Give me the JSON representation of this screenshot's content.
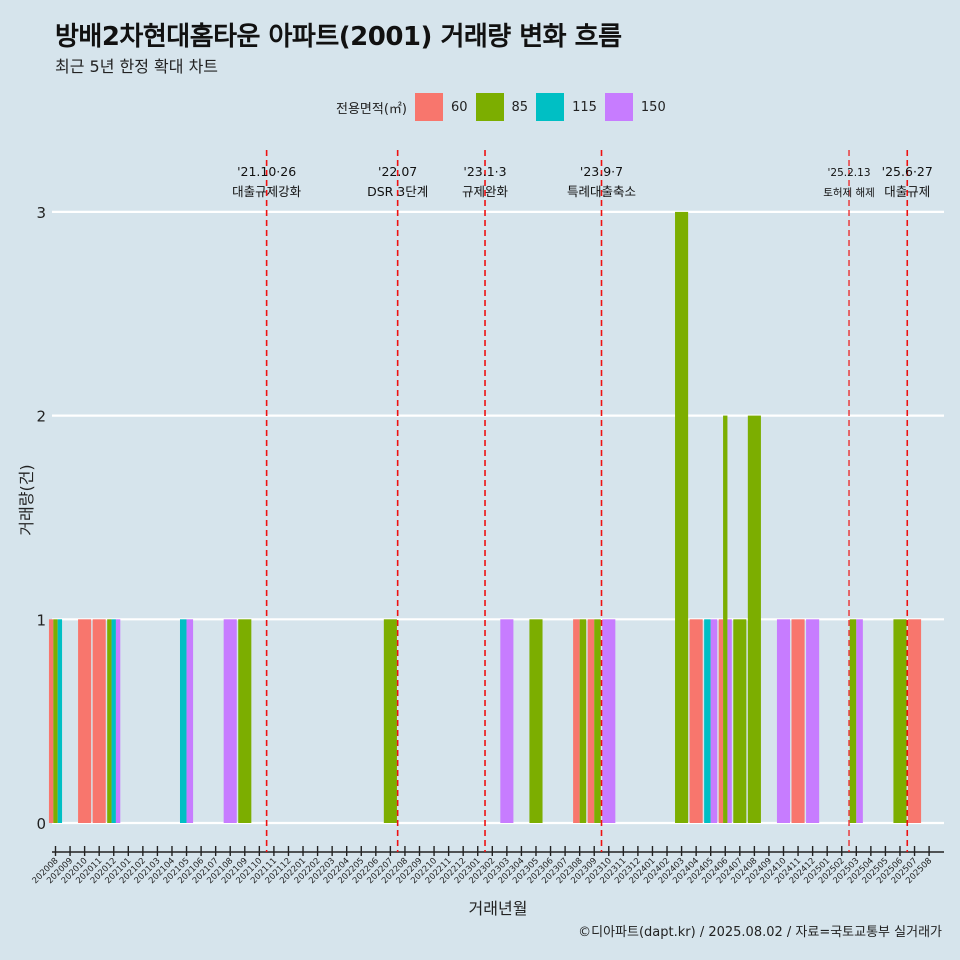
{
  "title": "방배2차현대홈타운 아파트(2001) 거래량 변화 흐름",
  "subtitle": "최근 5년 한정 확대 차트",
  "caption": "©디아파트(dapt.kr) / 2025.08.02 / 자료=국토교통부 실거래가",
  "legend": {
    "title": "전용면적(㎡)",
    "items": [
      {
        "label": "60",
        "color": "#f8766d"
      },
      {
        "label": "85",
        "color": "#7cae00"
      },
      {
        "label": "115",
        "color": "#00bfc4"
      },
      {
        "label": "150",
        "color": "#c77cff"
      }
    ]
  },
  "chart_data": {
    "type": "bar",
    "xlabel": "거래년월",
    "ylabel": "거래량(건)",
    "ylim": [
      0,
      3
    ],
    "yticks": [
      0,
      1,
      2,
      3
    ],
    "categories": [
      "202008",
      "202009",
      "202010",
      "202011",
      "202012",
      "202101",
      "202102",
      "202103",
      "202104",
      "202105",
      "202106",
      "202107",
      "202108",
      "202109",
      "202110",
      "202111",
      "202112",
      "202201",
      "202202",
      "202203",
      "202204",
      "202205",
      "202206",
      "202207",
      "202208",
      "202209",
      "202210",
      "202211",
      "202212",
      "202301",
      "202302",
      "202303",
      "202304",
      "202305",
      "202306",
      "202307",
      "202308",
      "202309",
      "202310",
      "202311",
      "202312",
      "202401",
      "202402",
      "202403",
      "202404",
      "202405",
      "202406",
      "202407",
      "202408",
      "202409",
      "202410",
      "202411",
      "202412",
      "202501",
      "202502",
      "202503",
      "202504",
      "202505",
      "202506",
      "202507",
      "202508"
    ],
    "bars": [
      {
        "month": "202008",
        "values": [
          {
            "area": "60",
            "count": 1
          },
          {
            "area": "85",
            "count": 1
          },
          {
            "area": "115",
            "count": 1
          }
        ]
      },
      {
        "month": "202010",
        "values": [
          {
            "area": "60",
            "count": 1
          }
        ]
      },
      {
        "month": "202011",
        "values": [
          {
            "area": "60",
            "count": 1
          }
        ]
      },
      {
        "month": "202012",
        "values": [
          {
            "area": "85",
            "count": 1
          },
          {
            "area": "115",
            "count": 1
          },
          {
            "area": "150",
            "count": 1
          }
        ]
      },
      {
        "month": "202105",
        "values": [
          {
            "area": "115",
            "count": 1
          },
          {
            "area": "150",
            "count": 1
          }
        ]
      },
      {
        "month": "202108",
        "values": [
          {
            "area": "150",
            "count": 1
          }
        ]
      },
      {
        "month": "202109",
        "values": [
          {
            "area": "85",
            "count": 1
          }
        ]
      },
      {
        "month": "202207",
        "values": [
          {
            "area": "85",
            "count": 1
          }
        ]
      },
      {
        "month": "202303",
        "values": [
          {
            "area": "150",
            "count": 1
          }
        ]
      },
      {
        "month": "202305",
        "values": [
          {
            "area": "85",
            "count": 1
          }
        ]
      },
      {
        "month": "202308",
        "values": [
          {
            "area": "60",
            "count": 1
          },
          {
            "area": "85",
            "count": 1
          }
        ]
      },
      {
        "month": "202309",
        "values": [
          {
            "area": "60",
            "count": 1
          },
          {
            "area": "85",
            "count": 1
          }
        ]
      },
      {
        "month": "202310",
        "values": [
          {
            "area": "150",
            "count": 1
          }
        ]
      },
      {
        "month": "202403",
        "values": [
          {
            "area": "85",
            "count": 3
          }
        ]
      },
      {
        "month": "202404",
        "values": [
          {
            "area": "60",
            "count": 1
          }
        ]
      },
      {
        "month": "202405",
        "values": [
          {
            "area": "115",
            "count": 1
          },
          {
            "area": "150",
            "count": 1
          }
        ]
      },
      {
        "month": "202406",
        "values": [
          {
            "area": "60",
            "count": 1
          },
          {
            "area": "85",
            "count": 2
          },
          {
            "area": "150",
            "count": 1
          }
        ]
      },
      {
        "month": "202407",
        "values": [
          {
            "area": "85",
            "count": 1
          }
        ]
      },
      {
        "month": "202408",
        "values": [
          {
            "area": "85",
            "count": 2
          }
        ]
      },
      {
        "month": "202410",
        "values": [
          {
            "area": "150",
            "count": 1
          }
        ]
      },
      {
        "month": "202411",
        "values": [
          {
            "area": "60",
            "count": 1
          }
        ]
      },
      {
        "month": "202412",
        "values": [
          {
            "area": "150",
            "count": 1
          }
        ]
      },
      {
        "month": "202503",
        "values": [
          {
            "area": "85",
            "count": 1
          },
          {
            "area": "150",
            "count": 1
          }
        ]
      },
      {
        "month": "202506",
        "values": [
          {
            "area": "85",
            "count": 1
          }
        ]
      },
      {
        "month": "202507",
        "values": [
          {
            "area": "60",
            "count": 1
          }
        ]
      }
    ],
    "annotations": [
      {
        "month_pos": 14.5,
        "date": "'21.10·26",
        "text": "대출규제강화",
        "small": false
      },
      {
        "month_pos": 23.5,
        "date": "'22.07",
        "text": "DSR 3단계",
        "small": false
      },
      {
        "month_pos": 29.5,
        "date": "'23.1·3",
        "text": "규제완화",
        "small": false
      },
      {
        "month_pos": 37.5,
        "date": "'23.9·7",
        "text": "특례대출축소",
        "small": false
      },
      {
        "month_pos": 54.5,
        "date": "'25.2.13",
        "text": "토허제 해제",
        "small": true
      },
      {
        "month_pos": 58.5,
        "date": "'25.6·27",
        "text": "대출규제",
        "small": false
      }
    ]
  }
}
